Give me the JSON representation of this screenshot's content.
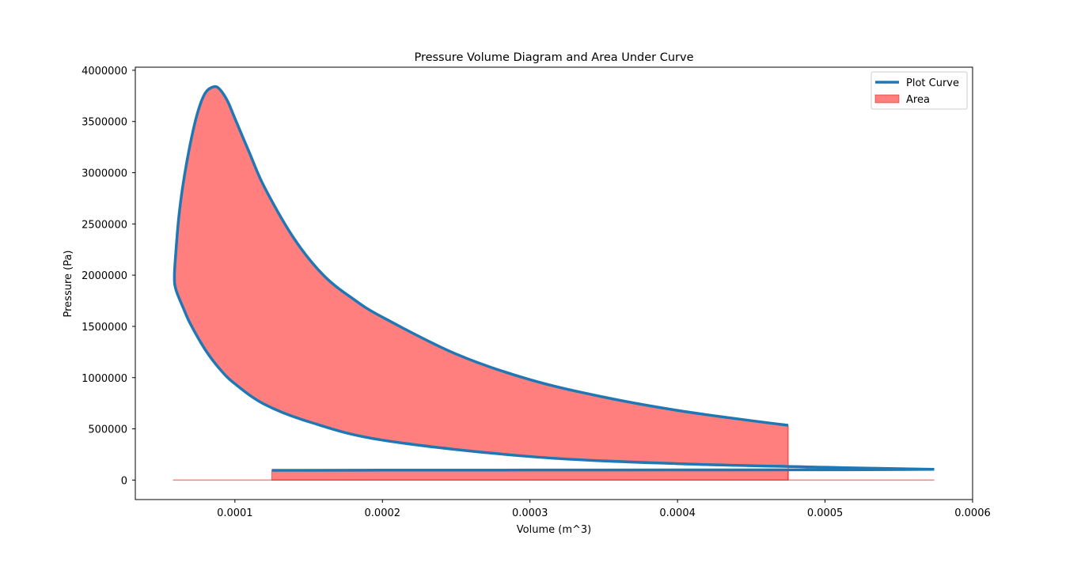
{
  "chart_data": {
    "type": "line",
    "title": "Pressure Volume Diagram and Area Under Curve",
    "xlabel": "Volume (m^3)",
    "ylabel": "Pressure (Pa)",
    "xlim": [
      3.25e-05,
      0.0006
    ],
    "ylim": [
      -190000,
      4030000
    ],
    "x_ticks": [
      0.0001,
      0.0002,
      0.0003,
      0.0004,
      0.0005,
      0.0006
    ],
    "x_tick_labels": [
      "0.0001",
      "0.0002",
      "0.0003",
      "0.0004",
      "0.0005",
      "0.0006"
    ],
    "y_ticks": [
      0,
      500000,
      1000000,
      1500000,
      2000000,
      2500000,
      3000000,
      3500000,
      4000000
    ],
    "y_tick_labels": [
      "0",
      "500000",
      "1000000",
      "1500000",
      "2000000",
      "2500000",
      "3000000",
      "3500000",
      "4000000"
    ],
    "grid": false,
    "legend_position": "top-right",
    "series": [
      {
        "name": "Plot Curve",
        "kind": "line",
        "color": "#1f77b4",
        "x": [
          0.000125,
          0.0002,
          0.0003,
          0.0004,
          0.0005,
          0.000574,
          0.0005,
          0.0004,
          0.0003,
          0.0002,
          0.00015,
          0.00012,
          0.0001,
          9e-05,
          8e-05,
          7e-05,
          6.5e-05,
          6e-05,
          5.9e-05,
          6e-05,
          6.2e-05,
          6.5e-05,
          7e-05,
          7.5e-05,
          8e-05,
          8.6e-05,
          9e-05,
          9.5e-05,
          0.0001,
          0.00011,
          0.00012,
          0.00014,
          0.00016,
          0.00018,
          0.0002,
          0.00025,
          0.0003,
          0.00035,
          0.0004,
          0.00045,
          0.000475
        ],
        "y": [
          95000,
          97000,
          98000,
          99000,
          100000,
          105000,
          125000,
          160000,
          230000,
          390000,
          570000,
          740000,
          940000,
          1080000,
          1270000,
          1520000,
          1680000,
          1860000,
          1990000,
          2230000,
          2570000,
          2900000,
          3300000,
          3600000,
          3780000,
          3840000,
          3810000,
          3700000,
          3530000,
          3190000,
          2860000,
          2360000,
          2000000,
          1770000,
          1590000,
          1230000,
          980000,
          810000,
          680000,
          580000,
          535000
        ]
      },
      {
        "name": "Area",
        "kind": "fill",
        "color": "#ff0000",
        "alpha": 0.5,
        "x_range": [
          5.8e-05,
          0.000574
        ],
        "fill_x_range": [
          0.000125,
          0.000475
        ]
      }
    ]
  }
}
